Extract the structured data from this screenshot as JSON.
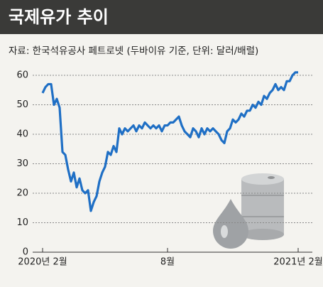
{
  "chart_data": {
    "type": "line",
    "title": "국제유가 추이",
    "subtitle": "자료: 한국석유공사 페트로넷 (두바이유 기준, 단위: 달러/배럴)",
    "categories": [
      "2020년 2월",
      null,
      null,
      null,
      null,
      null,
      null,
      null,
      null,
      null,
      null,
      null,
      null,
      null,
      null,
      null,
      null,
      null,
      null,
      null,
      null,
      null,
      null,
      null,
      null,
      null,
      null,
      null,
      null,
      null,
      null,
      null,
      null,
      null,
      null,
      null,
      null,
      null,
      null,
      null,
      null,
      null,
      null,
      null,
      "8월",
      null,
      null,
      null,
      null,
      null,
      null,
      null,
      null,
      null,
      null,
      null,
      null,
      null,
      null,
      null,
      null,
      null,
      null,
      null,
      null,
      null,
      null,
      null,
      null,
      null,
      null,
      null,
      null,
      null,
      null,
      null,
      null,
      null,
      null,
      null,
      null,
      null,
      null,
      null,
      null,
      null,
      null,
      null,
      null,
      null,
      "2021년 2월"
    ],
    "series": [
      {
        "name": "두바이유",
        "color": "#1f6fc5",
        "values": [
          54,
          56,
          57,
          57,
          50,
          52,
          49,
          34,
          33,
          28,
          24,
          27,
          22,
          25,
          21,
          20,
          21,
          14,
          17,
          19,
          24,
          27,
          29,
          34,
          33,
          36,
          34,
          42,
          40,
          42,
          41,
          42,
          43,
          41,
          43,
          42,
          44,
          43,
          42,
          43,
          42,
          43,
          41,
          43,
          43,
          44,
          44,
          45,
          46,
          43,
          41,
          40,
          39,
          42,
          41,
          39,
          42,
          40,
          42,
          41,
          42,
          41,
          40,
          38,
          37,
          41,
          42,
          45,
          44,
          45,
          47,
          46,
          48,
          48,
          50,
          49,
          51,
          50,
          53,
          52,
          54,
          55,
          57,
          55,
          56,
          55,
          58,
          58,
          60,
          61,
          61
        ]
      }
    ],
    "ylim": [
      0,
      60
    ],
    "yticks": [
      0,
      10,
      20,
      30,
      40,
      50,
      60
    ],
    "grid": true
  }
}
